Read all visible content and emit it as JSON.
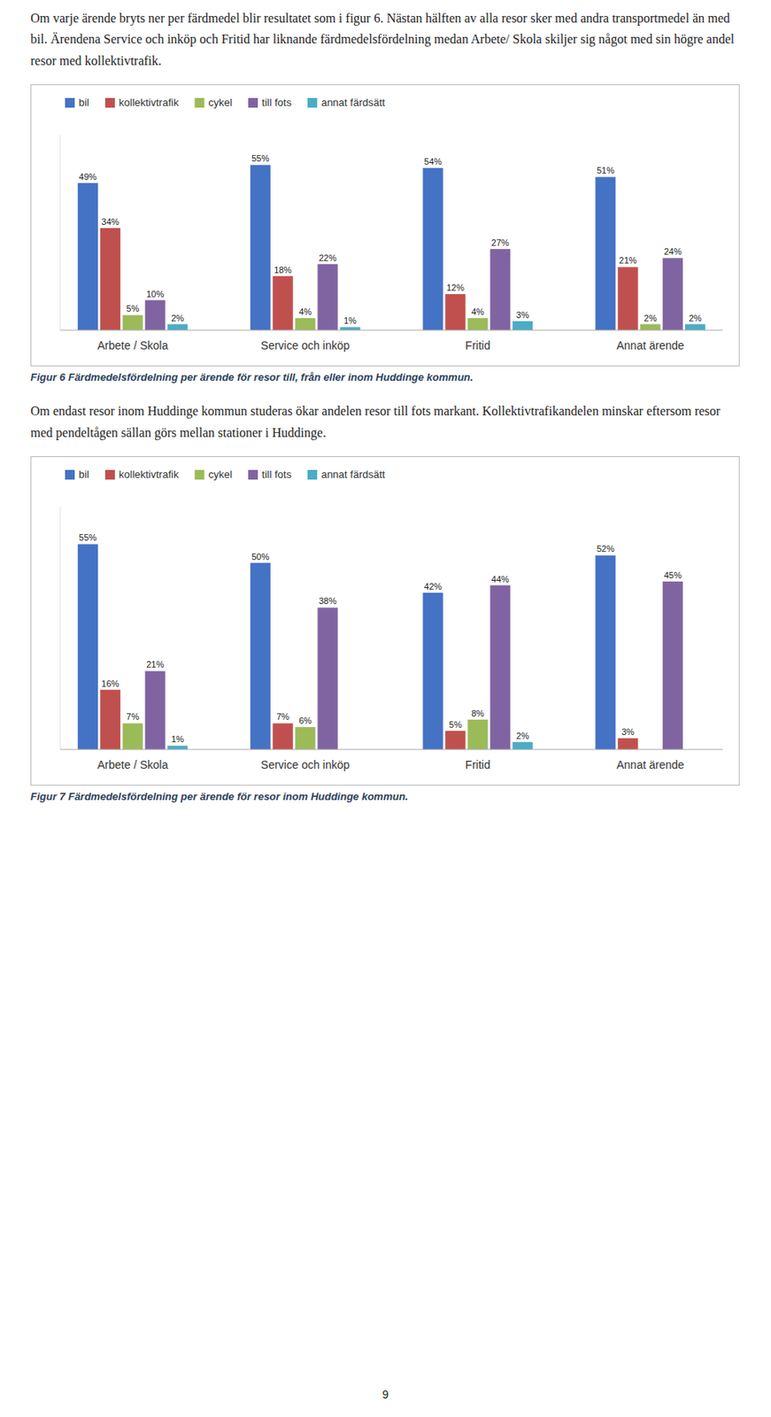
{
  "paragraphs": [
    "Om varje ärende bryts ner per färdmedel blir resultatet som i figur 6. Nästan hälften av alla resor sker med andra transportmedel än med bil. Ärendena Service och inköp och Fritid har liknande färdmedelsfördelning medan Arbete/ Skola skiljer sig något med sin högre andel resor med kollektivtrafik.",
    "Om endast resor inom Huddinge kommun studeras ökar andelen resor till fots markant. Kollektivtrafikandelen minskar eftersom resor med pendeltågen sällan görs mellan stationer i Huddinge."
  ],
  "page_number": "9",
  "chart_data": [
    {
      "type": "bar",
      "title": "Figur 6 Färdmedelsfördelning per ärende för resor till, från eller inom Huddinge kommun.",
      "categories": [
        "Arbete / Skola",
        "Service och inköp",
        "Fritid",
        "Annat ärende"
      ],
      "series": [
        {
          "name": "bil",
          "color": "#4472C4",
          "values": [
            49,
            55,
            54,
            51
          ],
          "value_labels": [
            "49%",
            "55%",
            "54%",
            "51%"
          ]
        },
        {
          "name": "kollektivtrafik",
          "color": "#C0504D",
          "values": [
            34,
            18,
            12,
            21
          ],
          "value_labels": [
            "34%",
            "18%",
            "12%",
            "21%"
          ]
        },
        {
          "name": "cykel",
          "color": "#9BBB59",
          "values": [
            5,
            4,
            4,
            2
          ],
          "value_labels": [
            "5%",
            "4%",
            "4%",
            "2%"
          ]
        },
        {
          "name": "till fots",
          "color": "#8064A2",
          "values": [
            10,
            22,
            27,
            24
          ],
          "value_labels": [
            "10%",
            "22%",
            "27%",
            "24%"
          ]
        },
        {
          "name": "annat färdsätt",
          "color": "#4BACC6",
          "values": [
            2,
            1,
            3,
            2
          ],
          "value_labels": [
            "2%",
            "1%",
            "3%",
            "2%"
          ]
        }
      ],
      "ylim": [
        0,
        65
      ],
      "grid": false,
      "legend": "top",
      "data_labels": true,
      "tick_labels": "x"
    },
    {
      "type": "bar",
      "title": "Figur 7 Färdmedelsfördelning per ärende för resor inom Huddinge kommun.",
      "categories": [
        "Arbete / Skola",
        "Service och inköp",
        "Fritid",
        "Annat ärende"
      ],
      "series": [
        {
          "name": "bil",
          "color": "#4472C4",
          "values": [
            55,
            50,
            42,
            52
          ],
          "value_labels": [
            "55%",
            "50%",
            "42%",
            "52%"
          ]
        },
        {
          "name": "kollektivtrafik",
          "color": "#C0504D",
          "values": [
            16,
            7,
            5,
            3
          ],
          "value_labels": [
            "16%",
            "7%",
            "5%",
            "3%"
          ]
        },
        {
          "name": "cykel",
          "color": "#9BBB59",
          "values": [
            7,
            6,
            8,
            0
          ],
          "value_labels": [
            "7%",
            "6%",
            "8%",
            null
          ]
        },
        {
          "name": "till fots",
          "color": "#8064A2",
          "values": [
            21,
            38,
            44,
            45
          ],
          "value_labels": [
            "21%",
            "38%",
            "44%",
            "45%"
          ]
        },
        {
          "name": "annat färdsätt",
          "color": "#4BACC6",
          "values": [
            1,
            0,
            2,
            0
          ],
          "value_labels": [
            "1%",
            null,
            "2%",
            null
          ]
        }
      ],
      "ylim": [
        0,
        65
      ],
      "grid": false,
      "legend": "top",
      "data_labels": true,
      "tick_labels": "x"
    }
  ]
}
